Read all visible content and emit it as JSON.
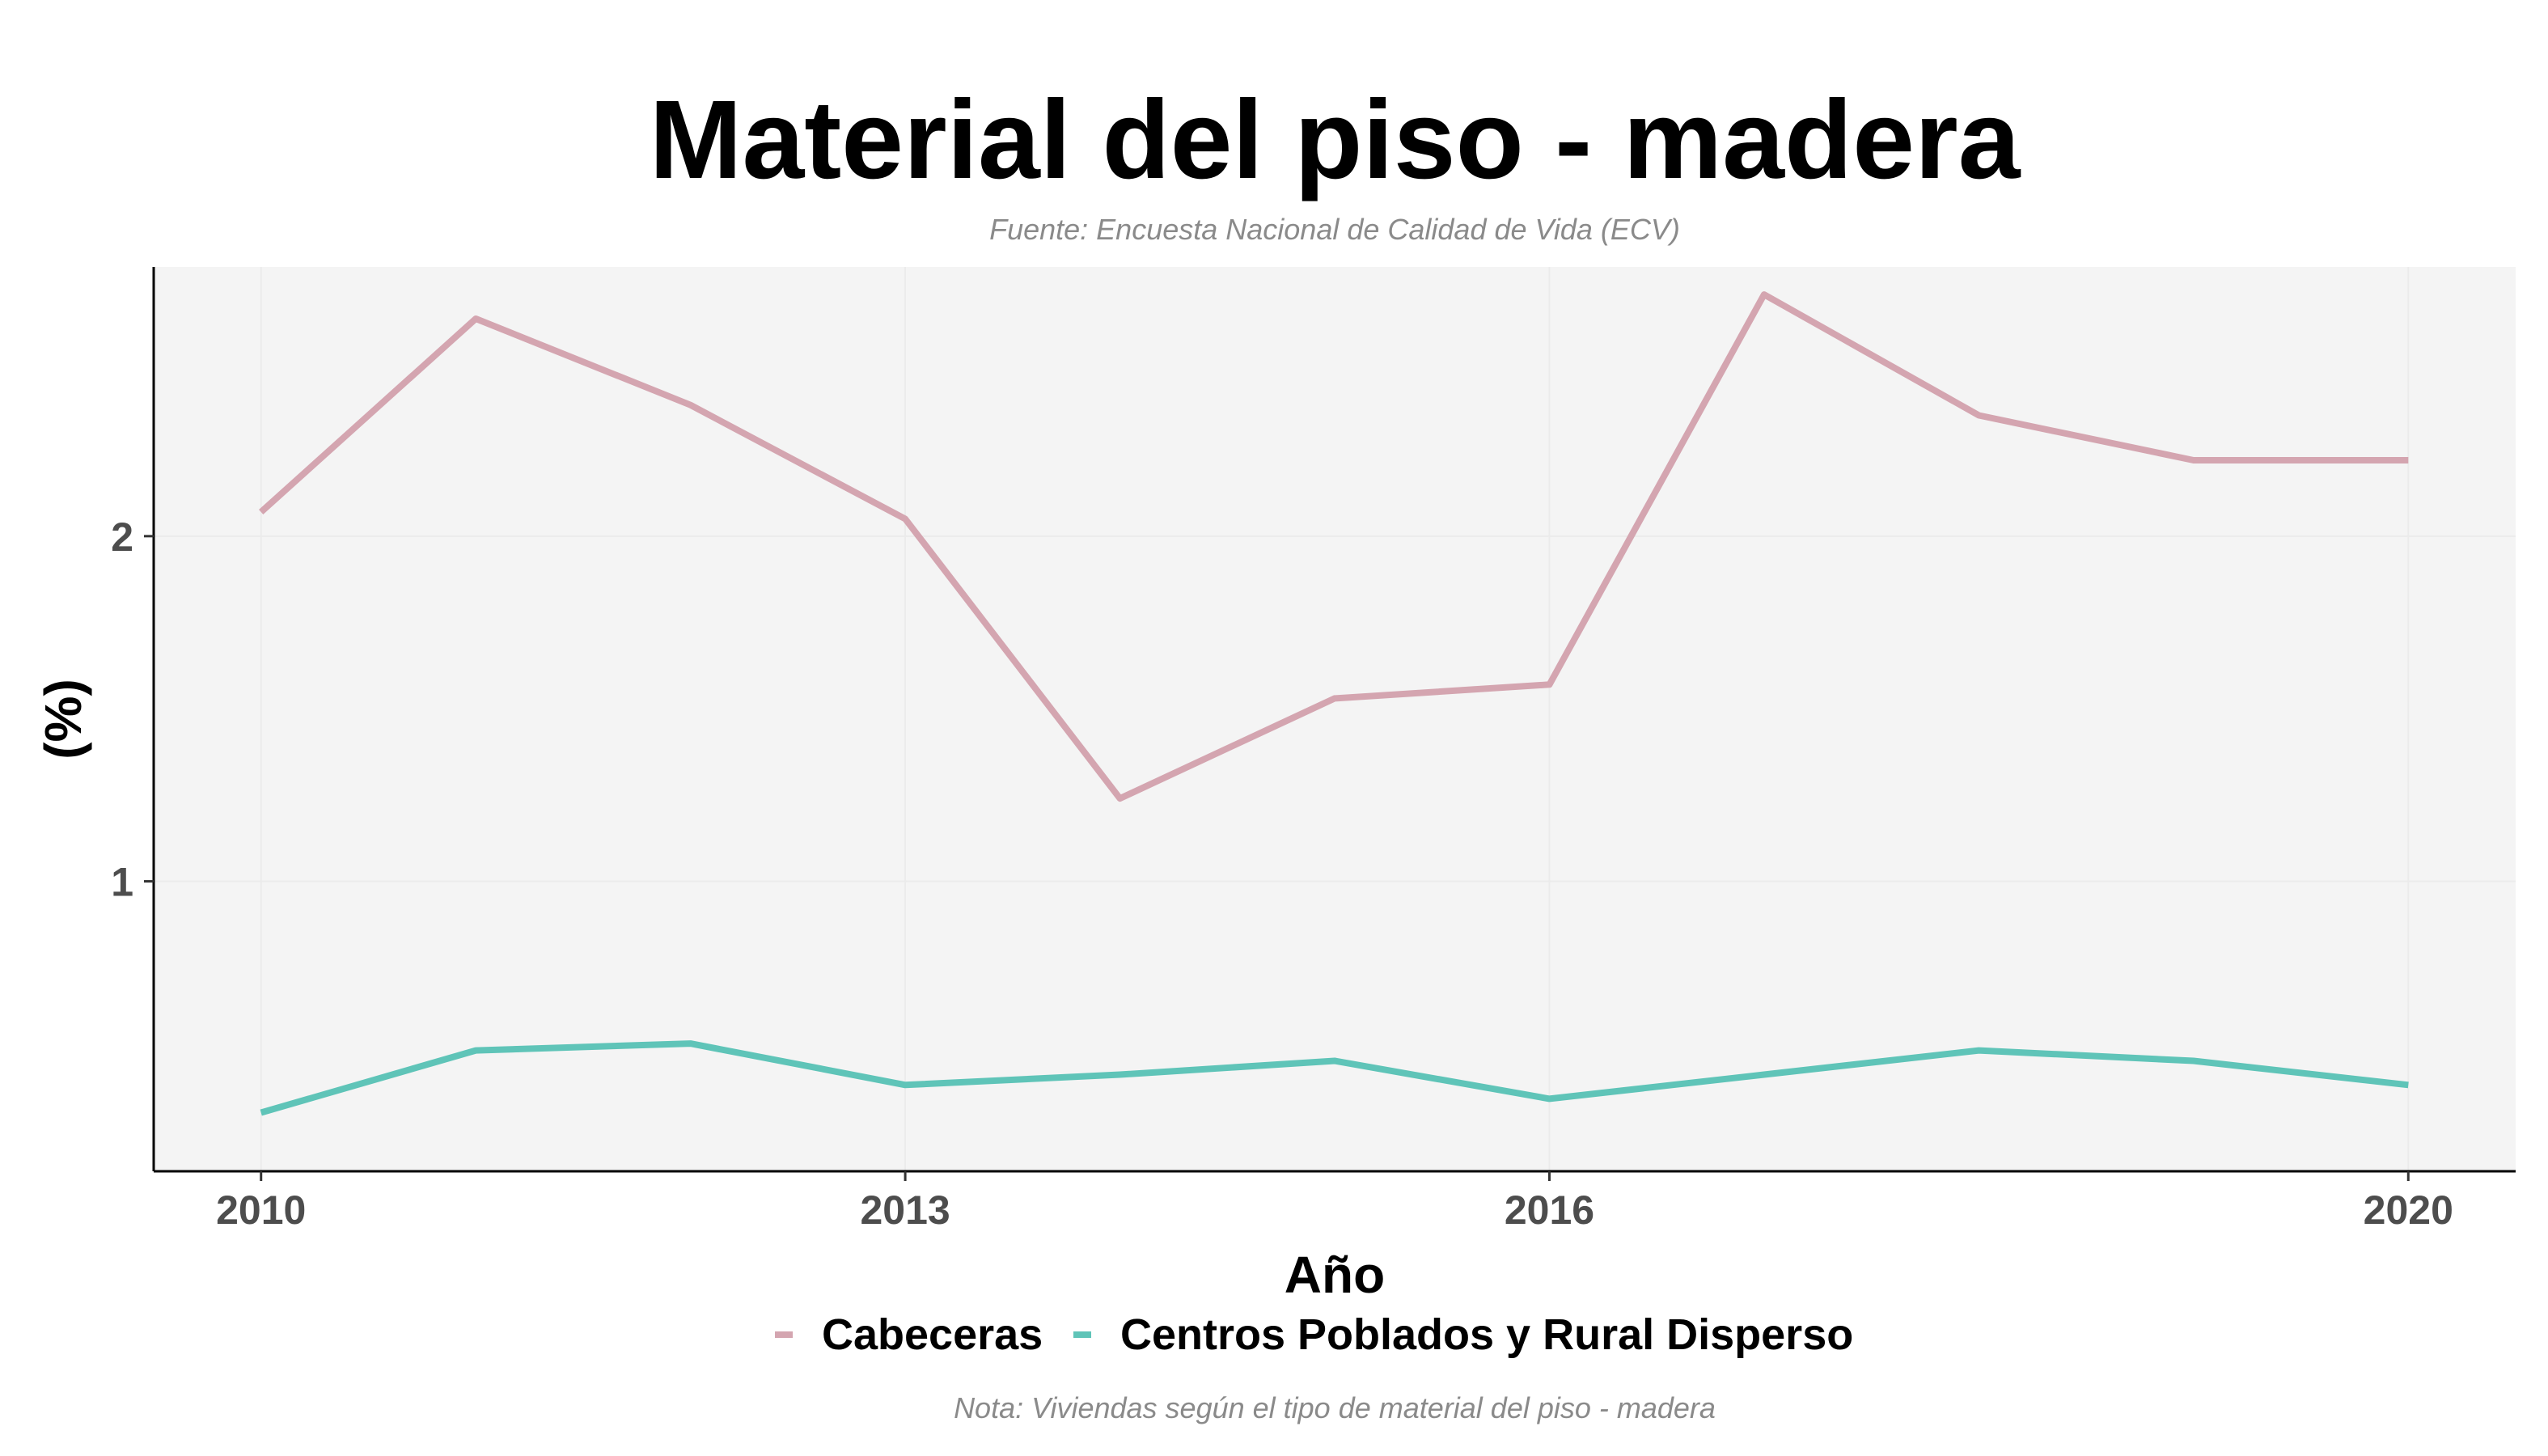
{
  "chart_data": {
    "type": "line",
    "title": "Material del piso - madera",
    "subtitle": "Fuente: Encuesta Nacional de Calidad de Vida (ECV)",
    "caption": "Nota: Viviendas según el tipo de material del piso - madera",
    "xlabel": "Año",
    "ylabel": "(%)",
    "x": [
      2010,
      2011,
      2012,
      2013,
      2014,
      2015,
      2016,
      2017,
      2018,
      2019,
      2020
    ],
    "xticks": [
      2010,
      2013,
      2016,
      2020
    ],
    "yticks": [
      1,
      2
    ],
    "xlim": [
      2009.5,
      2020.5
    ],
    "ylim": [
      0.16,
      2.78
    ],
    "grid": true,
    "legend_position": "bottom",
    "series": [
      {
        "name": "Cabeceras",
        "color": "#d4a5b0",
        "values": [
          2.07,
          2.63,
          2.38,
          2.05,
          1.24,
          1.53,
          1.57,
          2.7,
          2.35,
          2.22,
          2.22
        ]
      },
      {
        "name": "Centros Poblados y Rural Disperso",
        "color": "#5fc4b8",
        "values": [
          0.33,
          0.51,
          0.53,
          0.41,
          0.44,
          0.48,
          0.37,
          0.44,
          0.51,
          0.48,
          0.41
        ]
      }
    ]
  }
}
